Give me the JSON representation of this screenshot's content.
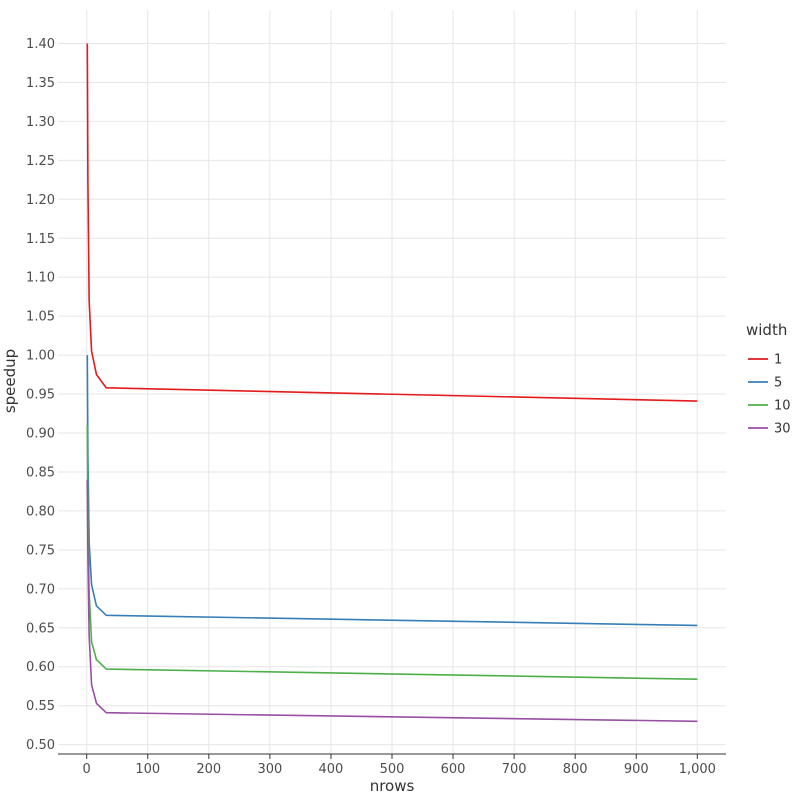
{
  "chart_data": {
    "type": "line",
    "xlabel": "nrows",
    "ylabel": "speedup",
    "xlim": [
      -47,
      1047
    ],
    "ylim": [
      0.488,
      1.443
    ],
    "x_ticks": [
      0,
      100,
      200,
      300,
      400,
      500,
      600,
      700,
      800,
      900,
      1000
    ],
    "x_tick_labels": [
      "0",
      "100",
      "200",
      "300",
      "400",
      "500",
      "600",
      "700",
      "800",
      "900",
      "1,000"
    ],
    "y_ticks": [
      0.5,
      0.55,
      0.6,
      0.65,
      0.7,
      0.75,
      0.8,
      0.85,
      0.9,
      0.95,
      1.0,
      1.05,
      1.1,
      1.15,
      1.2,
      1.25,
      1.3,
      1.35,
      1.4
    ],
    "y_tick_labels": [
      "0.50",
      "0.55",
      "0.60",
      "0.65",
      "0.70",
      "0.75",
      "0.80",
      "0.85",
      "0.90",
      "0.95",
      "1.00",
      "1.05",
      "1.10",
      "1.15",
      "1.20",
      "1.25",
      "1.30",
      "1.35",
      "1.40"
    ],
    "grid": true,
    "legend": {
      "title": "width",
      "position": "right"
    },
    "series": [
      {
        "name": "1",
        "color": "#e41a1c",
        "x": [
          1,
          2,
          4,
          8,
          16,
          32,
          1000
        ],
        "y": [
          1.4,
          1.22,
          1.07,
          1.005,
          0.975,
          0.958,
          0.941
        ]
      },
      {
        "name": "5",
        "color": "#377eb8",
        "x": [
          1,
          2,
          4,
          8,
          16,
          32,
          1000
        ],
        "y": [
          1.0,
          0.87,
          0.76,
          0.705,
          0.678,
          0.666,
          0.653
        ]
      },
      {
        "name": "10",
        "color": "#4daf4a",
        "x": [
          1,
          2,
          4,
          8,
          16,
          32,
          1000
        ],
        "y": [
          0.91,
          0.8,
          0.695,
          0.632,
          0.609,
          0.597,
          0.584
        ]
      },
      {
        "name": "30",
        "color": "#984ea3",
        "x": [
          1,
          2,
          4,
          8,
          16,
          32,
          1000
        ],
        "y": [
          0.84,
          0.74,
          0.64,
          0.577,
          0.553,
          0.541,
          0.53
        ]
      }
    ]
  }
}
